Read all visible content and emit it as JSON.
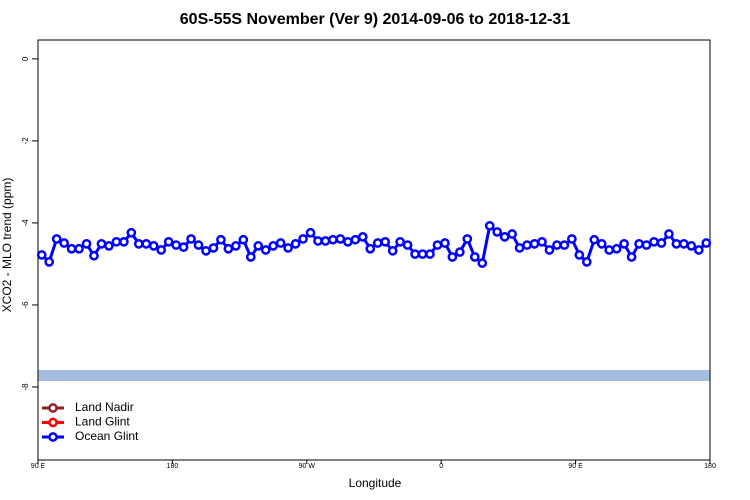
{
  "chart_data": {
    "type": "line",
    "title": "60S-55S November (Ver 9)   2014-09-06 to 2018-12-31",
    "x_label": "Longitude",
    "y_label": "XCO2 - MLO trend (ppm)",
    "x": [
      92.5,
      97.5,
      102.5,
      107.5,
      112.5,
      117.5,
      122.5,
      127.5,
      132.5,
      137.5,
      142.5,
      147.5,
      152.5,
      157.5,
      162.5,
      167.5,
      172.5,
      177.5,
      182.5,
      187.5,
      192.5,
      197.5,
      202.5,
      207.5,
      212.5,
      217.5,
      222.5,
      227.5,
      232.5,
      237.5,
      242.5,
      247.5,
      252.5,
      257.5,
      262.5,
      267.5,
      272.5,
      277.5,
      282.5,
      287.5,
      292.5,
      297.5,
      302.5,
      307.5,
      312.5,
      317.5,
      322.5,
      327.5,
      332.5,
      337.5,
      342.5,
      347.5,
      352.5,
      357.5,
      362.5,
      367.5,
      372.5,
      377.5,
      382.5,
      387.5,
      392.5,
      397.5,
      402.5,
      407.5,
      412.5,
      417.5,
      422.5,
      427.5,
      432.5,
      437.5,
      442.5,
      447.5,
      452.5,
      457.5,
      462.5,
      467.5,
      472.5,
      477.5,
      482.5,
      487.5,
      492.5,
      497.5,
      502.5,
      507.5,
      512.5,
      517.5,
      522.5,
      527.5,
      532.5,
      537.5
    ],
    "series": [
      {
        "name": "Land Nadir",
        "color": "#8b2323",
        "values": [
          null,
          null,
          null,
          null,
          null,
          null,
          null,
          null,
          null,
          null,
          null,
          null,
          null,
          null,
          null,
          null,
          null,
          null,
          null,
          null,
          null,
          null,
          null,
          null,
          null,
          null,
          null,
          null,
          null,
          null,
          null,
          null,
          null,
          null,
          null,
          null,
          null,
          null,
          null,
          null,
          null,
          null,
          null,
          null,
          null,
          null,
          null,
          null,
          null,
          null,
          null,
          null,
          null,
          null,
          null,
          null,
          null,
          null,
          null,
          null,
          null,
          null,
          null,
          null,
          null,
          null,
          null,
          null,
          null,
          null,
          null,
          null,
          null,
          null,
          null,
          null,
          null,
          null,
          null,
          null,
          null,
          null,
          null,
          null,
          null,
          null,
          null,
          null,
          null,
          null
        ]
      },
      {
        "name": "Land Glint",
        "color": "#ff0000",
        "values": [
          null,
          null,
          null,
          null,
          null,
          null,
          null,
          null,
          null,
          null,
          null,
          null,
          null,
          null,
          null,
          null,
          null,
          null,
          null,
          null,
          null,
          null,
          null,
          null,
          null,
          null,
          null,
          null,
          null,
          null,
          null,
          null,
          null,
          null,
          null,
          null,
          null,
          null,
          null,
          null,
          null,
          null,
          null,
          null,
          null,
          null,
          null,
          null,
          null,
          null,
          null,
          null,
          null,
          null,
          null,
          null,
          null,
          null,
          null,
          null,
          null,
          null,
          null,
          null,
          null,
          null,
          null,
          null,
          null,
          null,
          null,
          null,
          null,
          null,
          null,
          null,
          null,
          null,
          null,
          null,
          null,
          null,
          null,
          null,
          null,
          null,
          null,
          null,
          null,
          null
        ]
      },
      {
        "name": "Ocean Glint",
        "color": "#0000ff",
        "values": [
          -4.78,
          -4.95,
          -4.39,
          -4.49,
          -4.63,
          -4.63,
          -4.51,
          -4.8,
          -4.51,
          -4.56,
          -4.46,
          -4.46,
          -4.24,
          -4.51,
          -4.51,
          -4.56,
          -4.66,
          -4.46,
          -4.54,
          -4.59,
          -4.39,
          -4.54,
          -4.68,
          -4.61,
          -4.41,
          -4.63,
          -4.56,
          -4.41,
          -4.83,
          -4.56,
          -4.66,
          -4.56,
          -4.49,
          -4.61,
          -4.51,
          -4.39,
          -4.24,
          -4.44,
          -4.44,
          -4.41,
          -4.39,
          -4.46,
          -4.41,
          -4.34,
          -4.63,
          -4.49,
          -4.46,
          -4.68,
          -4.46,
          -4.54,
          -4.76,
          -4.76,
          -4.76,
          -4.54,
          -4.49,
          -4.83,
          -4.71,
          -4.39,
          -4.83,
          -4.98,
          -4.07,
          -4.22,
          -4.34,
          -4.27,
          -4.61,
          -4.54,
          -4.51,
          -4.46,
          -4.66,
          -4.54,
          -4.54,
          -4.39,
          -4.78,
          -4.95,
          -4.41,
          -4.51,
          -4.66,
          -4.63,
          -4.51,
          -4.83,
          -4.51,
          -4.54,
          -4.46,
          -4.49,
          -4.27,
          -4.51,
          -4.51,
          -4.56,
          -4.66,
          -4.49
        ]
      }
    ],
    "xlim": [
      90,
      540
    ],
    "xticks": [
      {
        "value": 90,
        "label": "90 E"
      },
      180,
      {
        "value": 270,
        "label": "90 W"
      },
      {
        "value": 360,
        "label": "0"
      },
      {
        "value": 450,
        "label": "90 E"
      },
      {
        "value": 540,
        "label": "180"
      }
    ],
    "ylim": [
      -9.78,
      0.46
    ],
    "yticks": [
      0,
      -2,
      -4,
      -6,
      -8
    ],
    "legend": "bottom-left"
  }
}
